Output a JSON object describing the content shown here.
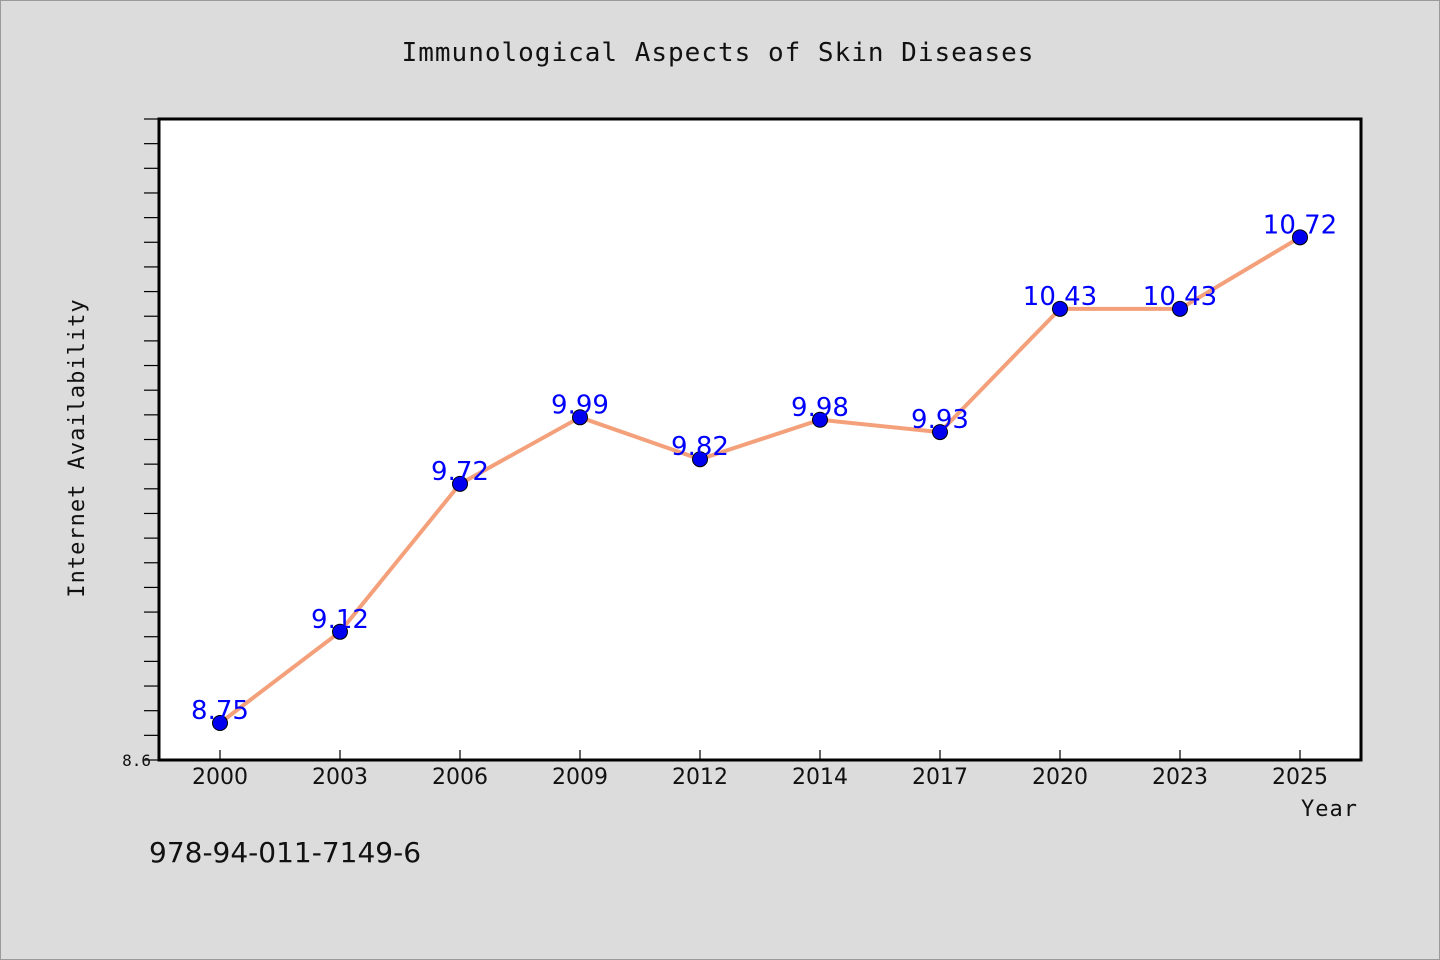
{
  "chart_data": {
    "type": "line",
    "title": "Immunological Aspects of Skin Diseases",
    "xlabel": "Year",
    "ylabel": "Internet Availability",
    "categories": [
      "2000",
      "2003",
      "2006",
      "2009",
      "2012",
      "2014",
      "2017",
      "2020",
      "2023",
      "2025"
    ],
    "series": [
      {
        "values": [
          8.75,
          9.12,
          9.72,
          9.99,
          9.82,
          9.98,
          9.93,
          10.43,
          10.43,
          10.72
        ],
        "labels": [
          "8.75",
          "9.12",
          "9.72",
          "9.99",
          "9.82",
          "9.98",
          "9.93",
          "10.43",
          "10.43",
          "10.72"
        ],
        "line_color": "#f4a07a",
        "marker_color": "#0000ee"
      }
    ],
    "ylim": [
      8.6,
      11.2
    ],
    "y_tick_labels": [
      "8.6"
    ],
    "grid": false,
    "legend": "none"
  },
  "footer": {
    "isbn": "978-94-011-7149-6"
  },
  "colors": {
    "background": "#dcdcdc",
    "plot_background": "#ffffff",
    "data_label": "#0000ff"
  }
}
